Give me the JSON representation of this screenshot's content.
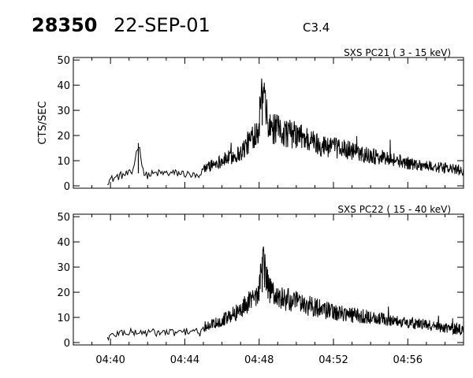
{
  "header": {
    "event_id": "28350",
    "date": "22-SEP-01",
    "goes_class": "C3.4"
  },
  "x_axis": {
    "ticks": [
      "04:40",
      "04:44",
      "04:48",
      "04:52",
      "04:56"
    ],
    "range": [
      "04:38",
      "04:59"
    ]
  },
  "chart_data": [
    {
      "type": "line",
      "title": "SXS PC21  (  3 - 15 keV)",
      "xlabel": "",
      "ylabel": "CTS/SEC",
      "xlim": [
        "04:38",
        "04:59"
      ],
      "ylim": [
        0,
        51
      ],
      "yticks": [
        0,
        10,
        20,
        30,
        40,
        50
      ],
      "grid": false,
      "series": [
        {
          "color": "#000000",
          "x": [
            "04:39:50",
            "04:40:30",
            "04:41:10",
            "04:41:30",
            "04:41:50",
            "04:42:30",
            "04:43:10",
            "04:43:50",
            "04:44:30",
            "04:44:50",
            "04:45:00",
            "04:45:40",
            "04:46:20",
            "04:47:00",
            "04:47:30",
            "04:48:00",
            "04:48:10",
            "04:48:30",
            "04:49:00",
            "04:49:30",
            "04:50:00",
            "04:50:30",
            "04:51:00",
            "04:51:30",
            "04:52:00",
            "04:53:00",
            "04:54:00",
            "04:55:00",
            "04:56:00",
            "04:57:00",
            "04:58:00",
            "04:59:00"
          ],
          "y": [
            2,
            4,
            5,
            17,
            4,
            5,
            5,
            5,
            4,
            3,
            7,
            9,
            11,
            13,
            18,
            24,
            38,
            23,
            22,
            21,
            20,
            19,
            17,
            16,
            15,
            14,
            12,
            11,
            9,
            8,
            7,
            6
          ]
        }
      ]
    },
    {
      "type": "line",
      "title": "SXS PC22  ( 15 - 40 keV)",
      "xlabel": "",
      "ylabel": "",
      "xlim": [
        "04:38",
        "04:59"
      ],
      "ylim": [
        0,
        51
      ],
      "yticks": [
        0,
        10,
        20,
        30,
        40,
        50
      ],
      "grid": false,
      "series": [
        {
          "color": "#000000",
          "x": [
            "04:39:50",
            "04:40:30",
            "04:41:10",
            "04:41:50",
            "04:42:30",
            "04:43:10",
            "04:43:50",
            "04:44:30",
            "04:44:50",
            "04:45:00",
            "04:45:40",
            "04:46:20",
            "04:47:00",
            "04:47:30",
            "04:48:00",
            "04:48:10",
            "04:48:30",
            "04:49:00",
            "04:49:30",
            "04:50:00",
            "04:50:30",
            "04:51:00",
            "04:51:30",
            "04:52:00",
            "04:53:00",
            "04:54:00",
            "04:55:00",
            "04:56:00",
            "04:57:00",
            "04:58:00",
            "04:59:00"
          ],
          "y": [
            2,
            4,
            4,
            4,
            4,
            4,
            4,
            5,
            3,
            6,
            8,
            10,
            13,
            17,
            20,
            34,
            21,
            18,
            17,
            16,
            15,
            14,
            13,
            12,
            11,
            10,
            9,
            8,
            7,
            6,
            5
          ]
        }
      ]
    }
  ]
}
